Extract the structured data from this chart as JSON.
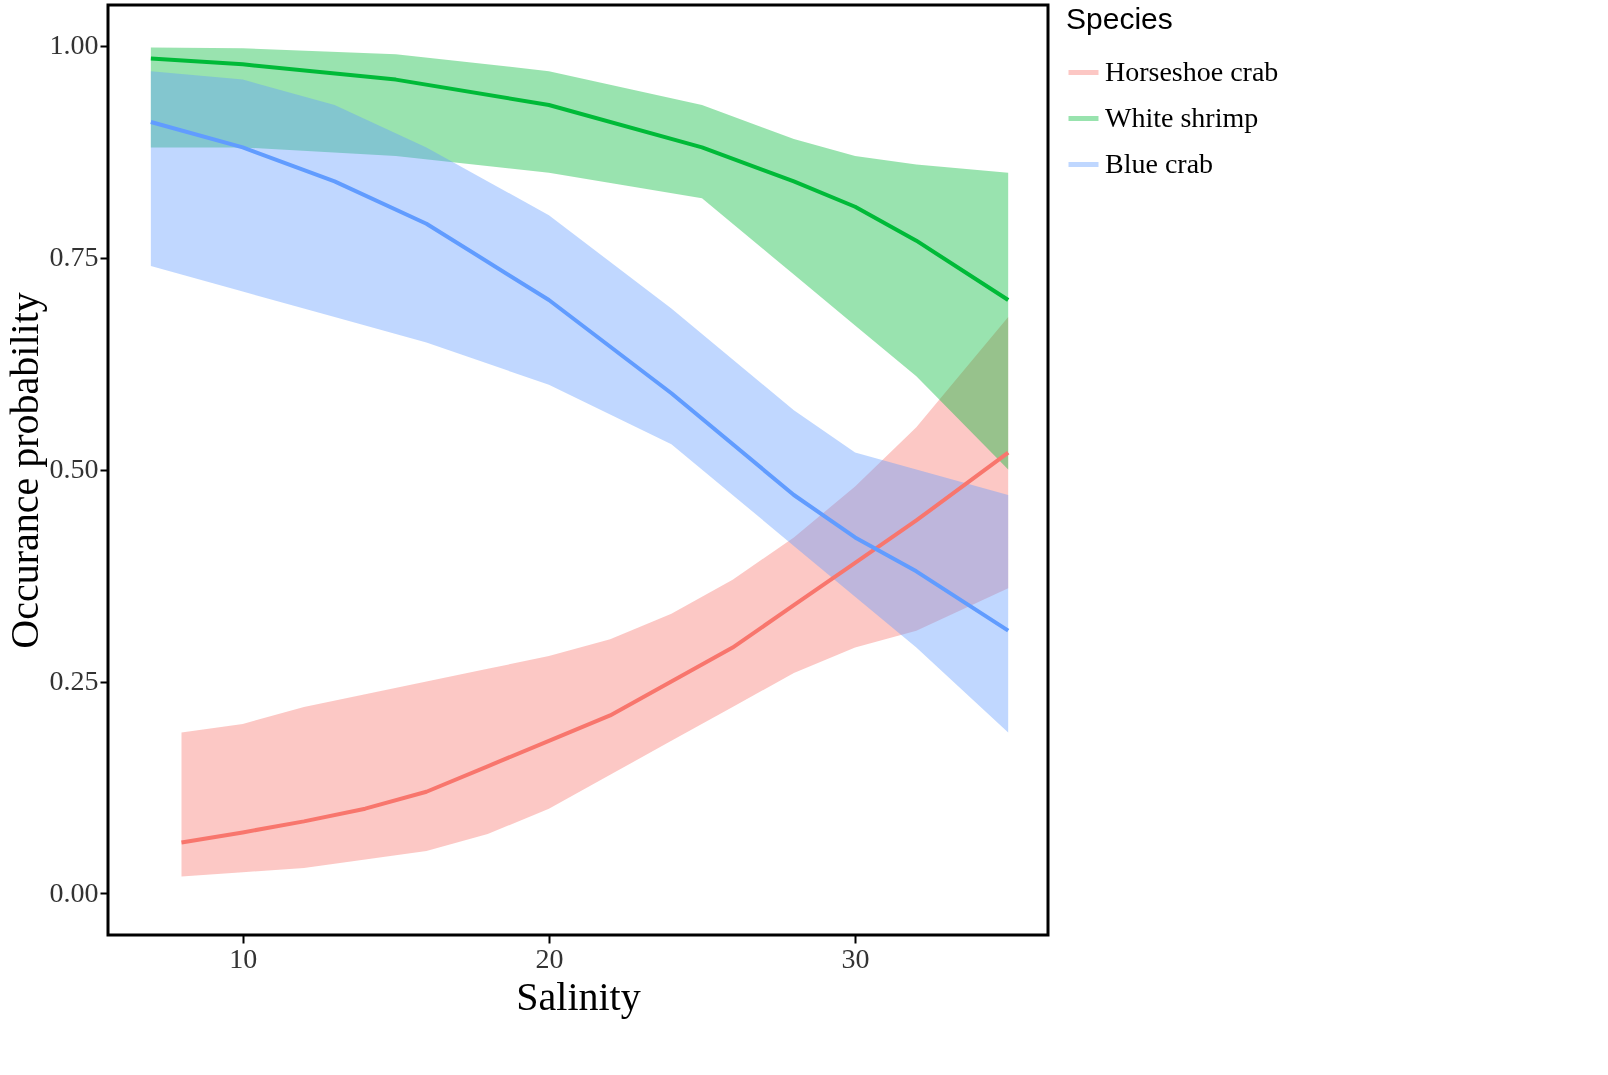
{
  "chart_data": {
    "type": "line",
    "xlabel": "Salinity",
    "ylabel": "Occurance probability",
    "legend_title": "Species",
    "legend": "right",
    "grid": false,
    "marker": "none",
    "line_style": "solid",
    "xlim": [
      5.6,
      36.3
    ],
    "xticks": [
      10,
      20,
      30
    ],
    "ylim": [
      -0.049,
      1.048
    ],
    "yticks": [
      {
        "value": 0,
        "label": "0.00"
      },
      {
        "value": 0.25,
        "label": "0.25"
      },
      {
        "value": 0.5,
        "label": "0.50"
      },
      {
        "value": 0.75,
        "label": "0.75"
      },
      {
        "value": 1,
        "label": "1.00"
      }
    ],
    "series": [
      {
        "name": "Horseshoe crab",
        "color": "#f8766d",
        "x": [
          8,
          10,
          12,
          14,
          16,
          18,
          20,
          22,
          24,
          26,
          28,
          30,
          32,
          35
        ],
        "values": [
          0.06,
          0.072,
          0.085,
          0.1,
          0.12,
          0.15,
          0.18,
          0.21,
          0.25,
          0.29,
          0.34,
          0.39,
          0.44,
          0.52
        ],
        "lower": [
          0.02,
          0.025,
          0.03,
          0.04,
          0.05,
          0.07,
          0.1,
          0.14,
          0.18,
          0.22,
          0.26,
          0.29,
          0.31,
          0.36
        ],
        "upper": [
          0.19,
          0.2,
          0.22,
          0.235,
          0.25,
          0.265,
          0.28,
          0.3,
          0.33,
          0.37,
          0.42,
          0.48,
          0.55,
          0.68
        ]
      },
      {
        "name": "White shrimp",
        "color": "#00ba38",
        "x": [
          7,
          10,
          15,
          20,
          25,
          28,
          30,
          32,
          35
        ],
        "values": [
          0.985,
          0.978,
          0.96,
          0.93,
          0.88,
          0.84,
          0.81,
          0.77,
          0.7
        ],
        "lower": [
          0.88,
          0.88,
          0.87,
          0.85,
          0.82,
          0.73,
          0.67,
          0.61,
          0.5
        ],
        "upper": [
          0.998,
          0.997,
          0.99,
          0.97,
          0.93,
          0.89,
          0.87,
          0.86,
          0.85
        ]
      },
      {
        "name": "Blue crab",
        "color": "#619cff",
        "x": [
          7,
          10,
          13,
          16,
          20,
          24,
          28,
          30,
          32,
          35
        ],
        "values": [
          0.91,
          0.88,
          0.84,
          0.79,
          0.7,
          0.59,
          0.47,
          0.42,
          0.38,
          0.31
        ],
        "lower": [
          0.74,
          0.71,
          0.68,
          0.65,
          0.6,
          0.53,
          0.41,
          0.35,
          0.29,
          0.19
        ],
        "upper": [
          0.97,
          0.96,
          0.93,
          0.88,
          0.8,
          0.69,
          0.57,
          0.52,
          0.5,
          0.47
        ]
      }
    ]
  }
}
